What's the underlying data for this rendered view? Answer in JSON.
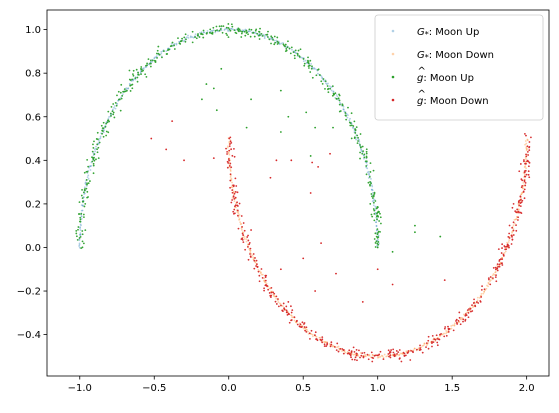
{
  "chart_data": {
    "type": "scatter",
    "title": "",
    "xlabel": "",
    "ylabel": "",
    "xlim": [
      -1.22,
      2.15
    ],
    "ylim": [
      -0.59,
      1.09
    ],
    "xticks": [
      -1.0,
      -0.5,
      0.0,
      0.5,
      1.0,
      1.5,
      2.0
    ],
    "xtick_labels": [
      "−1.0",
      "−0.5",
      "0.0",
      "0.5",
      "1.0",
      "1.5",
      "2.0"
    ],
    "yticks": [
      -0.4,
      -0.2,
      0.0,
      0.2,
      0.4,
      0.6,
      0.8,
      1.0
    ],
    "ytick_labels": [
      "−0.4",
      "−0.2",
      "0.0",
      "0.2",
      "0.4",
      "0.6",
      "0.8",
      "1.0"
    ],
    "grid": false,
    "legend_position": "top-right",
    "series": [
      {
        "name": "G*: Moon Up",
        "label_main": "G",
        "label_sub": "*",
        "label_suffix": ":  Moon Up",
        "color": "#1f77b4",
        "description": "upper half-circle, center (0,0), radius 1, x from -1 to 1",
        "curve": "moon_up",
        "n_points": 400
      },
      {
        "name": "G*: Moon Down",
        "label_main": "G",
        "label_sub": "*",
        "label_suffix": ":  Moon Down",
        "color": "#ff7f0e",
        "description": "lower half-circle, center (1,0.5), radius 1, x from 0 to 2",
        "curve": "moon_down",
        "n_points": 400
      },
      {
        "name": "ĝ: Moon Up",
        "label_main": "g",
        "label_hat": "^",
        "label_suffix": ":  Moon Up",
        "color": "#2ca02c",
        "description": "generated samples concentrated on the upper moon with outliers inside the arc",
        "curve": "moon_up",
        "n_points": 450,
        "outlier_points": [
          [
            -0.15,
            0.75
          ],
          [
            -0.1,
            0.73
          ],
          [
            0.35,
            0.72
          ],
          [
            0.4,
            0.6
          ],
          [
            0.58,
            0.55
          ],
          [
            0.35,
            0.53
          ],
          [
            0.12,
            0.55
          ],
          [
            -0.08,
            0.63
          ],
          [
            -0.18,
            0.68
          ],
          [
            -0.05,
            0.82
          ],
          [
            0.15,
            0.68
          ],
          [
            0.7,
            0.55
          ],
          [
            0.95,
            0.2
          ],
          [
            0.55,
            0.42
          ],
          [
            1.25,
            0.07
          ],
          [
            1.42,
            0.05
          ],
          [
            1.25,
            0.1
          ],
          [
            1.1,
            -0.02
          ],
          [
            1.0,
            0.0
          ],
          [
            0.52,
            0.62
          ]
        ]
      },
      {
        "name": "ĝ: Moon Down",
        "label_main": "g",
        "label_hat": "^",
        "label_suffix": ":  Moon Down",
        "color": "#d62728",
        "description": "generated samples concentrated on the lower moon with outliers",
        "curve": "moon_down",
        "n_points": 450,
        "outlier_points": [
          [
            -0.52,
            0.5
          ],
          [
            -0.42,
            0.45
          ],
          [
            -0.38,
            0.58
          ],
          [
            -0.3,
            0.4
          ],
          [
            0.28,
            0.32
          ],
          [
            0.32,
            0.4
          ],
          [
            0.42,
            0.4
          ],
          [
            0.56,
            0.39
          ],
          [
            0.6,
            0.37
          ],
          [
            0.68,
            0.43
          ],
          [
            0.55,
            0.25
          ],
          [
            0.15,
            0.08
          ],
          [
            0.5,
            -0.05
          ],
          [
            0.72,
            -0.12
          ],
          [
            0.35,
            -0.1
          ],
          [
            0.58,
            -0.2
          ],
          [
            0.9,
            -0.25
          ],
          [
            1.0,
            -0.1
          ],
          [
            1.1,
            -0.17
          ],
          [
            1.45,
            -0.15
          ],
          [
            -0.1,
            0.41
          ],
          [
            0.4,
            -0.25
          ],
          [
            0.62,
            0.02
          ]
        ]
      }
    ]
  }
}
